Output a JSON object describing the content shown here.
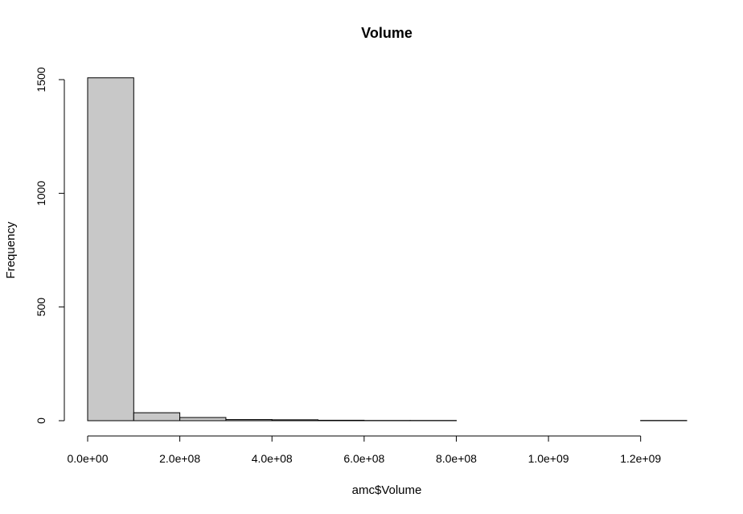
{
  "chart_data": {
    "type": "bar",
    "title": "Volume",
    "xlabel": "amc$Volume",
    "ylabel": "Frequency",
    "bin_edges": [
      0,
      100000000,
      200000000,
      300000000,
      400000000,
      500000000,
      600000000,
      700000000,
      800000000,
      900000000,
      1000000000,
      1100000000,
      1200000000,
      1300000000
    ],
    "values": [
      1508,
      35,
      14,
      5,
      4,
      2,
      1,
      1,
      0,
      0,
      0,
      0,
      1
    ],
    "xlim": [
      0,
      1300000000
    ],
    "ylim": [
      0,
      1500
    ],
    "x_ticks": [
      0,
      200000000,
      400000000,
      600000000,
      800000000,
      1000000000,
      1200000000
    ],
    "x_tick_labels": [
      "0.0e+00",
      "2.0e+08",
      "4.0e+08",
      "6.0e+08",
      "8.0e+08",
      "1.0e+09",
      "1.2e+09"
    ],
    "y_ticks": [
      0,
      500,
      1000,
      1500
    ],
    "y_tick_labels": [
      "0",
      "500",
      "1000",
      "1500"
    ],
    "grid": false,
    "legend": "none",
    "bar_color": "#c8c8c8",
    "edge_color": "#000000"
  }
}
